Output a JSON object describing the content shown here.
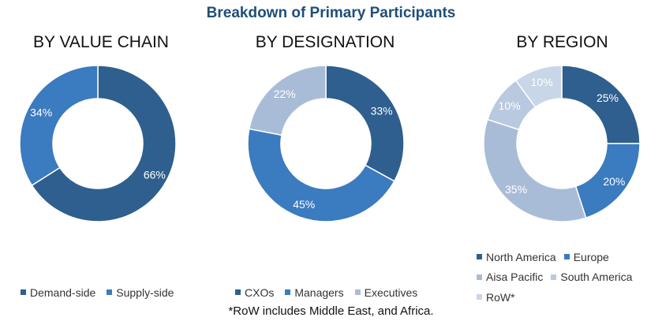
{
  "title": "Breakdown of Primary Participants",
  "footnote": "*RoW includes Middle East, and Africa.",
  "chart_data": [
    {
      "type": "pie",
      "title": "BY VALUE CHAIN",
      "categories": [
        "Demand-side",
        "Supply-side"
      ],
      "values": [
        66,
        34
      ],
      "labels": [
        "66%",
        "34%"
      ],
      "colors": [
        "#2e5f8e",
        "#3b7bbf"
      ]
    },
    {
      "type": "pie",
      "title": "BY DESIGNATION",
      "categories": [
        "CXOs",
        "Managers",
        "Executives"
      ],
      "values": [
        33,
        45,
        22
      ],
      "labels": [
        "33%",
        "45%",
        "22%"
      ],
      "colors": [
        "#2e5f8e",
        "#3b7bbf",
        "#a9bcd7"
      ]
    },
    {
      "type": "pie",
      "title": "BY REGION",
      "categories": [
        "North America",
        "Europe",
        "Aisa Pacific",
        "South America",
        "RoW*"
      ],
      "values": [
        25,
        20,
        35,
        10,
        10
      ],
      "labels": [
        "25%",
        "20%",
        "35%",
        "10%",
        "10%"
      ],
      "colors": [
        "#2e5f8e",
        "#3b7bbf",
        "#a9bcd7",
        "#b9c9df",
        "#c9d6e8"
      ]
    }
  ]
}
